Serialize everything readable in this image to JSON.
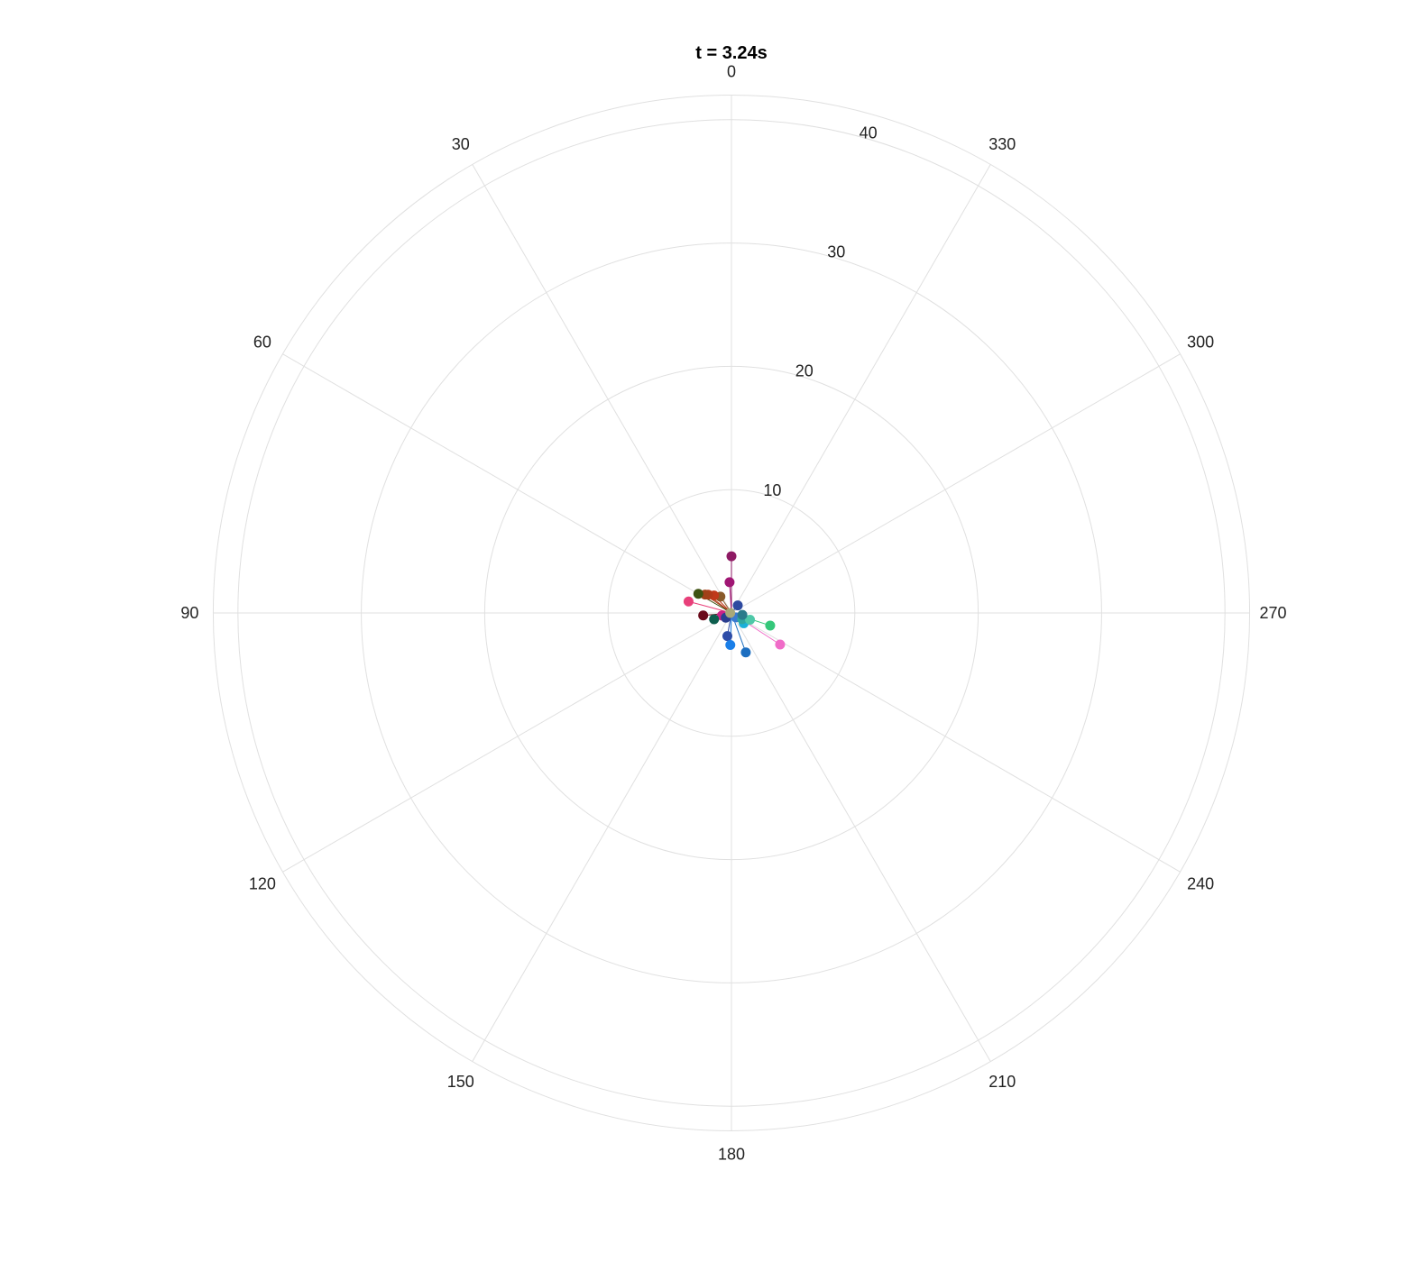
{
  "chart_data": {
    "type": "scatter",
    "subtype": "polar-stem",
    "title": "t = 3.24s",
    "angular_axis": {
      "direction": "counterclockwise",
      "zero_at": "top",
      "ticks": [
        0,
        30,
        60,
        90,
        120,
        150,
        180,
        210,
        240,
        270,
        300,
        330
      ],
      "tick_labels": [
        "0",
        "30",
        "60",
        "90",
        "120",
        "150",
        "180",
        "210",
        "240",
        "270",
        "300",
        "330"
      ]
    },
    "radial_axis": {
      "range": [
        0,
        42
      ],
      "ticks": [
        10,
        20,
        30,
        40
      ],
      "tick_labels": [
        "10",
        "20",
        "30",
        "40"
      ],
      "label_angle_deg": -15
    },
    "grid": true,
    "legend": "none",
    "points": [
      {
        "theta": 0.0,
        "r": 4.6,
        "color": "#8e1a64"
      },
      {
        "theta": 3.5,
        "r": 2.5,
        "color": "#a01674"
      },
      {
        "theta": 34.0,
        "r": 1.6,
        "color": "#8a5a2a"
      },
      {
        "theta": 45.0,
        "r": 2.0,
        "color": "#c0391b"
      },
      {
        "theta": 52.0,
        "r": 2.4,
        "color": "#b23a1a"
      },
      {
        "theta": 55.0,
        "r": 2.6,
        "color": "#a14018"
      },
      {
        "theta": 60.0,
        "r": 3.1,
        "color": "#3e5212"
      },
      {
        "theta": 75.0,
        "r": 3.6,
        "color": "#e8407a"
      },
      {
        "theta": 95.0,
        "r": 2.3,
        "color": "#6a0a1a"
      },
      {
        "theta": 105.0,
        "r": 0.8,
        "color": "#cc2288"
      },
      {
        "theta": 110.0,
        "r": 1.5,
        "color": "#0d5e4e"
      },
      {
        "theta": 130.0,
        "r": 0.6,
        "color": "#2a3d8f"
      },
      {
        "theta": 170.0,
        "r": 1.9,
        "color": "#2e4da8"
      },
      {
        "theta": 178.0,
        "r": 2.6,
        "color": "#1a7fe8"
      },
      {
        "theta": 200.0,
        "r": 3.4,
        "color": "#1c6ec0"
      },
      {
        "theta": 225.0,
        "r": 0.5,
        "color": "#3a7bd0"
      },
      {
        "theta": 230.0,
        "r": 1.3,
        "color": "#1ab0d8"
      },
      {
        "theta": 237.0,
        "r": 4.7,
        "color": "#f06cc8"
      },
      {
        "theta": 240.0,
        "r": 1.0,
        "color": "#2fa7a0"
      },
      {
        "theta": 250.0,
        "r": 1.6,
        "color": "#4ec8a8"
      },
      {
        "theta": 252.0,
        "r": 3.3,
        "color": "#35c77a"
      },
      {
        "theta": 260.0,
        "r": 0.9,
        "color": "#2a7a8a"
      },
      {
        "theta": 320.0,
        "r": 0.8,
        "color": "#2e4aa0"
      },
      {
        "theta": 90.0,
        "r": 0.1,
        "color": "#a8a878"
      }
    ]
  }
}
